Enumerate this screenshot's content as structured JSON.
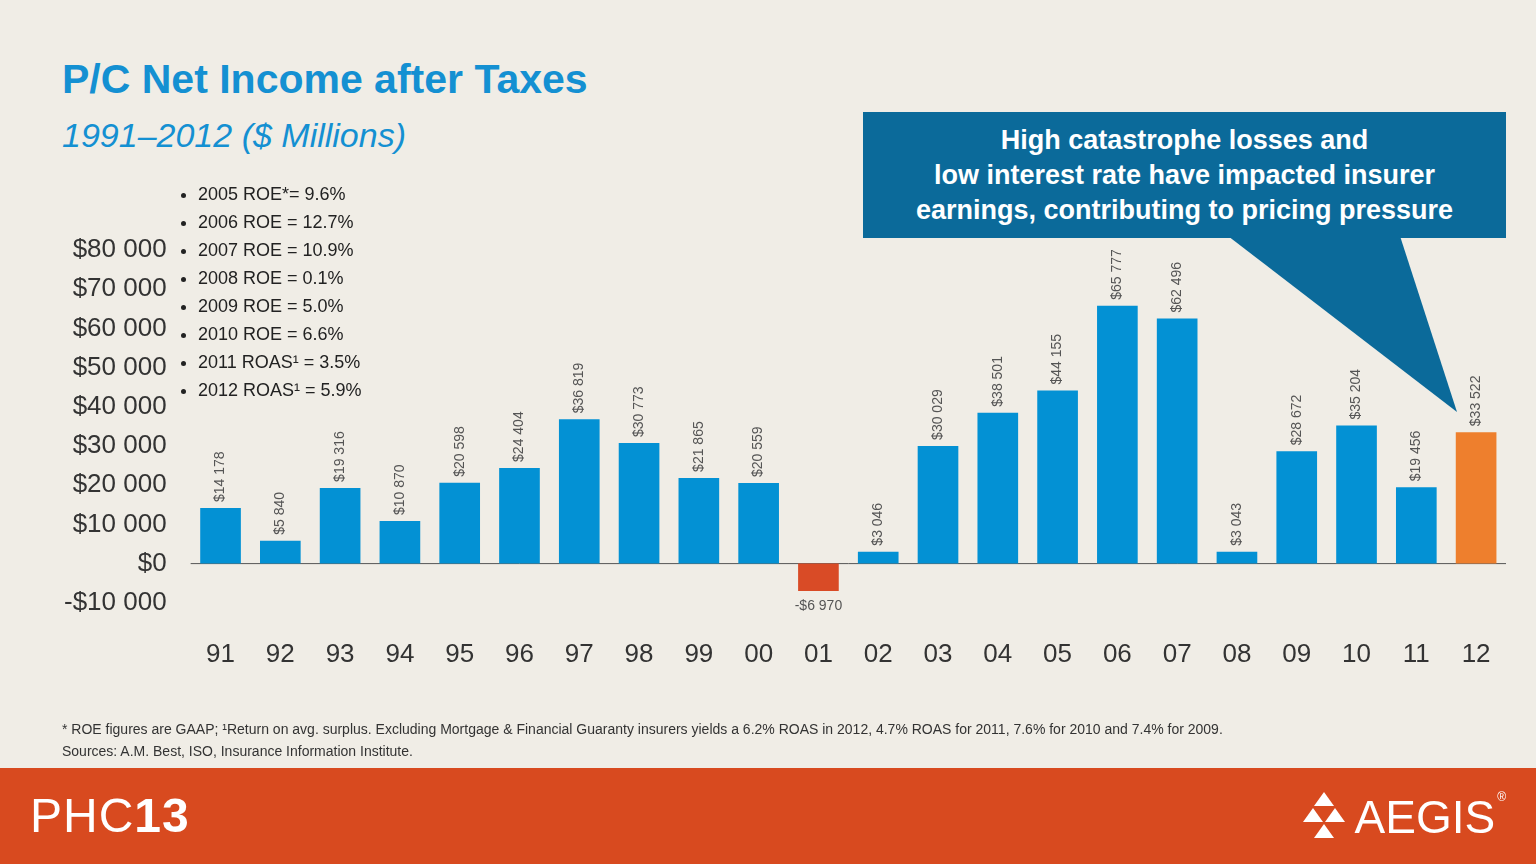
{
  "chart_data": {
    "type": "bar",
    "title": "P/C Net Income after Taxes",
    "subtitle": "1991–2012 ($ Millions)",
    "categories": [
      "91",
      "92",
      "93",
      "94",
      "95",
      "96",
      "97",
      "98",
      "99",
      "00",
      "01",
      "02",
      "03",
      "04",
      "05",
      "06",
      "07",
      "08",
      "09",
      "10",
      "11",
      "12"
    ],
    "values": [
      14178,
      5840,
      19316,
      10870,
      20598,
      24404,
      36819,
      30773,
      21865,
      20559,
      -6970,
      3046,
      30029,
      38501,
      44155,
      65777,
      62496,
      3043,
      28672,
      35204,
      19456,
      33522
    ],
    "value_labels": [
      "$14 178",
      "$5 840",
      "$19 316",
      "$10 870",
      "$20 598",
      "$24 404",
      "$36 819",
      "$30 773",
      "$21 865",
      "$20 559",
      "-$6 970",
      "$3 046",
      "$30 029",
      "$38 501",
      "$44 155",
      "$65 777",
      "$62 496",
      "$3 043",
      "$28 672",
      "$35 204",
      "$19 456",
      "$33 522"
    ],
    "colors": [
      "#0391d4",
      "#0391d4",
      "#0391d4",
      "#0391d4",
      "#0391d4",
      "#0391d4",
      "#0391d4",
      "#0391d4",
      "#0391d4",
      "#0391d4",
      "#d94b26",
      "#0391d4",
      "#0391d4",
      "#0391d4",
      "#0391d4",
      "#0391d4",
      "#0391d4",
      "#0391d4",
      "#0391d4",
      "#0391d4",
      "#0391d4",
      "#ee7f2d"
    ],
    "ylim": [
      -10000,
      80000
    ],
    "yticks": [
      {
        "value": -10000,
        "label": "-$10 000"
      },
      {
        "value": 0,
        "label": "$0"
      },
      {
        "value": 10000,
        "label": "$10 000"
      },
      {
        "value": 20000,
        "label": "$20 000"
      },
      {
        "value": 30000,
        "label": "$30 000"
      },
      {
        "value": 40000,
        "label": "$40 000"
      },
      {
        "value": 50000,
        "label": "$50 000"
      },
      {
        "value": 60000,
        "label": "$60 000"
      },
      {
        "value": 70000,
        "label": "$70 000"
      },
      {
        "value": 80000,
        "label": "$80 000"
      }
    ],
    "grid": false,
    "data_labels": true,
    "annotations": {
      "notes": [
        "2005 ROE*= 9.6%",
        "2006 ROE = 12.7%",
        "2007 ROE = 10.9%",
        "2008 ROE = 0.1%",
        "2009 ROE = 5.0%",
        "2010 ROE = 6.6%",
        "2011 ROAS¹ = 3.5%",
        "2012 ROAS¹ = 5.9%"
      ],
      "callout": [
        "High catastrophe losses and",
        "low interest rate have impacted insurer",
        "earnings, contributing to pricing pressure"
      ],
      "footnote": [
        "* ROE figures are GAAP; ¹Return on avg. surplus. Excluding Mortgage & Financial Guaranty insurers yields a 6.2% ROAS in 2012, 4.7% ROAS for 2011, 7.6% for 2010 and 7.4% for 2009.",
        "Sources: A.M. Best, ISO, Insurance Information Institute."
      ]
    }
  },
  "footer": {
    "left": [
      "PHC",
      "13"
    ],
    "brand": "AEGIS",
    "brand_mark": "®"
  }
}
